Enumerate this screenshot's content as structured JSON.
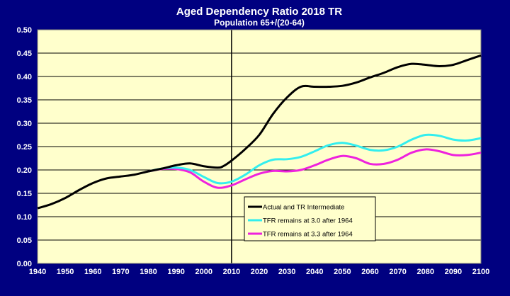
{
  "chart_data": {
    "type": "line",
    "title": "Aged Dependency Ratio 2018 TR",
    "subtitle": "Population 65+/(20-64)",
    "xlabel": "",
    "ylabel": "",
    "xlim": [
      1940,
      2100
    ],
    "ylim": [
      0,
      0.5
    ],
    "x_ticks": [
      "1940",
      "1950",
      "1960",
      "1970",
      "1980",
      "1990",
      "2000",
      "2010",
      "2020",
      "2030",
      "2040",
      "2050",
      "2060",
      "2070",
      "2080",
      "2090",
      "2100"
    ],
    "y_ticks": [
      "0.00",
      "0.05",
      "0.10",
      "0.15",
      "0.20",
      "0.25",
      "0.30",
      "0.35",
      "0.40",
      "0.45",
      "0.50"
    ],
    "grid": "horizontal",
    "reference_line_x": 2010,
    "legend_placement": "center-bottom",
    "colors": {
      "background": "#000080",
      "plot": "#FFFFCC"
    },
    "series": [
      {
        "name": "Actual and TR Intermediate",
        "color": "#000000",
        "x": [
          1940,
          1945,
          1950,
          1955,
          1960,
          1965,
          1970,
          1975,
          1980,
          1985,
          1990,
          1995,
          2000,
          2005,
          2007,
          2010,
          2015,
          2020,
          2025,
          2030,
          2035,
          2040,
          2045,
          2050,
          2055,
          2060,
          2065,
          2070,
          2075,
          2080,
          2085,
          2090,
          2095,
          2100
        ],
        "y": [
          0.118,
          0.127,
          0.14,
          0.157,
          0.172,
          0.182,
          0.186,
          0.19,
          0.197,
          0.203,
          0.21,
          0.214,
          0.208,
          0.205,
          0.208,
          0.22,
          0.245,
          0.275,
          0.32,
          0.355,
          0.378,
          0.378,
          0.378,
          0.38,
          0.387,
          0.398,
          0.408,
          0.42,
          0.427,
          0.425,
          0.422,
          0.425,
          0.435,
          0.445
        ]
      },
      {
        "name": "TFR remains at 3.0 after 1964",
        "color": "#33EEEE",
        "x": [
          1980,
          1985,
          1990,
          1995,
          2000,
          2005,
          2010,
          2015,
          2020,
          2025,
          2030,
          2035,
          2040,
          2045,
          2050,
          2055,
          2060,
          2065,
          2070,
          2075,
          2080,
          2085,
          2090,
          2095,
          2100
        ],
        "y": [
          0.197,
          0.203,
          0.205,
          0.2,
          0.185,
          0.172,
          0.175,
          0.19,
          0.21,
          0.222,
          0.223,
          0.228,
          0.24,
          0.253,
          0.258,
          0.252,
          0.243,
          0.242,
          0.25,
          0.265,
          0.275,
          0.273,
          0.265,
          0.263,
          0.268
        ]
      },
      {
        "name": "TFR remains at 3.3 after 1964",
        "color": "#EE22DD",
        "x": [
          1980,
          1985,
          1990,
          1995,
          2000,
          2005,
          2010,
          2015,
          2020,
          2025,
          2030,
          2035,
          2040,
          2045,
          2050,
          2055,
          2060,
          2065,
          2070,
          2075,
          2080,
          2085,
          2090,
          2095,
          2100
        ],
        "y": [
          0.197,
          0.202,
          0.202,
          0.195,
          0.175,
          0.162,
          0.167,
          0.18,
          0.192,
          0.198,
          0.197,
          0.2,
          0.21,
          0.222,
          0.23,
          0.225,
          0.213,
          0.213,
          0.222,
          0.237,
          0.244,
          0.24,
          0.232,
          0.232,
          0.237
        ]
      }
    ]
  }
}
